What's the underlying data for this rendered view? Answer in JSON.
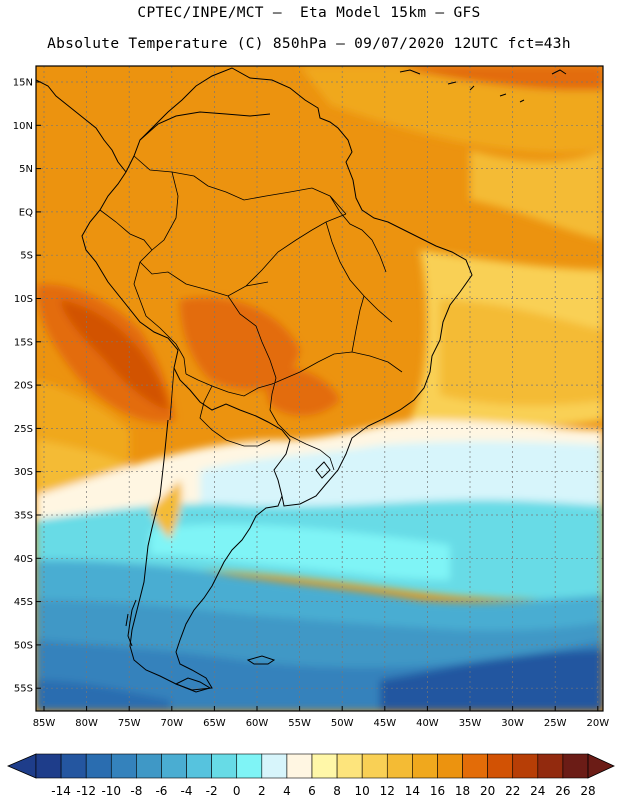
{
  "header": {
    "line1": "CPTEC/INPE/MCT –  Eta Model 15km – GFS",
    "line2": "Absolute Temperature (C) 850hPa – 09/07/2020 12UTC fct=43h"
  },
  "axes": {
    "lat_labels": [
      "15N",
      "10N",
      "5N",
      "EQ",
      "5S",
      "10S",
      "15S",
      "20S",
      "25S",
      "30S",
      "35S",
      "40S",
      "45S",
      "50S",
      "55S"
    ],
    "lon_labels": [
      "85W",
      "80W",
      "75W",
      "70W",
      "65W",
      "60W",
      "55W",
      "50W",
      "45W",
      "40W",
      "35W",
      "30W",
      "25W",
      "20W"
    ]
  },
  "colorbar": {
    "labels": [
      "-14",
      "-12",
      "-10",
      "-8",
      "-6",
      "-4",
      "-2",
      "0",
      "2",
      "4",
      "6",
      "8",
      "10",
      "12",
      "14",
      "16",
      "18",
      "20",
      "22",
      "24",
      "26",
      "28"
    ],
    "colors": [
      "#1e3d8a",
      "#2456a0",
      "#2a6db0",
      "#3482bc",
      "#3f98c6",
      "#4aadd2",
      "#56c3de",
      "#67dbe6",
      "#7ff4f6",
      "#d7f5fb",
      "#fff6e2",
      "#fff7a8",
      "#fde47c",
      "#f9d055",
      "#f4bb34",
      "#f0a81d",
      "#ec930f",
      "#e36c08",
      "#d25204",
      "#b73e06",
      "#922a0e",
      "#6b1c16"
    ]
  },
  "colors": {
    "background": "#ffffff",
    "border": "#000000",
    "grid": "#777777",
    "coast": "#000000"
  }
}
